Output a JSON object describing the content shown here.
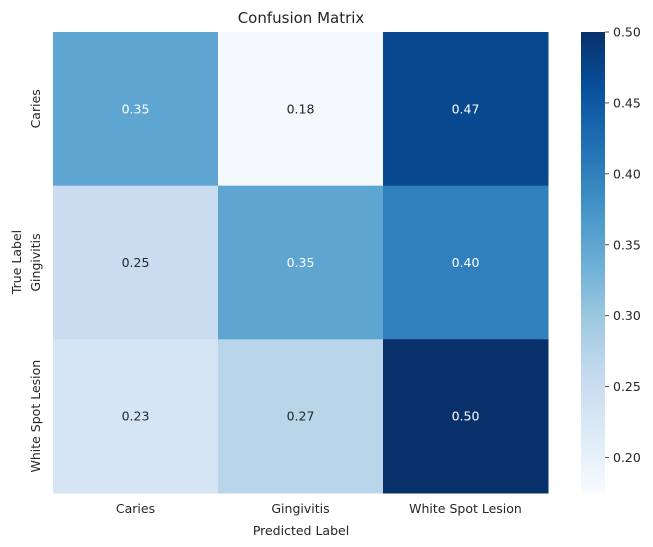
{
  "chart_data": {
    "type": "heatmap",
    "title": "Confusion Matrix",
    "xlabel": "Predicted Label",
    "ylabel": "True Label",
    "x_categories": [
      "Caries",
      "Gingivitis",
      "White Spot Lesion"
    ],
    "y_categories": [
      "Caries",
      "Gingivitis",
      "White Spot Lesion"
    ],
    "values": [
      [
        0.35,
        0.18,
        0.47
      ],
      [
        0.25,
        0.35,
        0.4
      ],
      [
        0.23,
        0.27,
        0.5
      ]
    ],
    "cell_labels": [
      [
        "0.35",
        "0.18",
        "0.47"
      ],
      [
        "0.25",
        "0.35",
        "0.40"
      ],
      [
        "0.23",
        "0.27",
        "0.50"
      ]
    ],
    "colormap": "Blues",
    "color_range": [
      0.175,
      0.5
    ],
    "colorbar_ticks": [
      "0.20",
      "0.25",
      "0.30",
      "0.35",
      "0.40",
      "0.45",
      "0.50"
    ],
    "grid": false
  }
}
